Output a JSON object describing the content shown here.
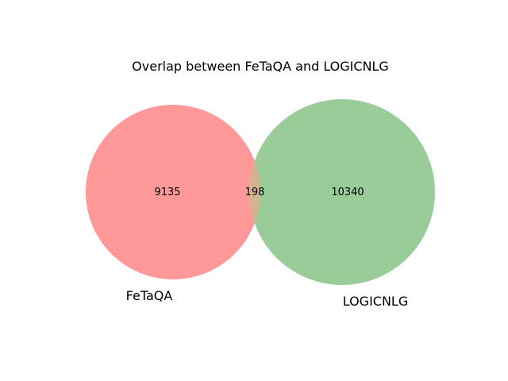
{
  "diagram": {
    "type": "venn2",
    "title": "Overlap between FeTaQA and LOGICNLG",
    "sets": [
      {
        "name": "FeTaQA",
        "only_count": "9135",
        "color": "#ff9999"
      },
      {
        "name": "LOGICNLG",
        "only_count": "10340",
        "color": "#99cc99"
      }
    ],
    "intersection": {
      "count": "198",
      "color": "#d6b38f"
    }
  }
}
